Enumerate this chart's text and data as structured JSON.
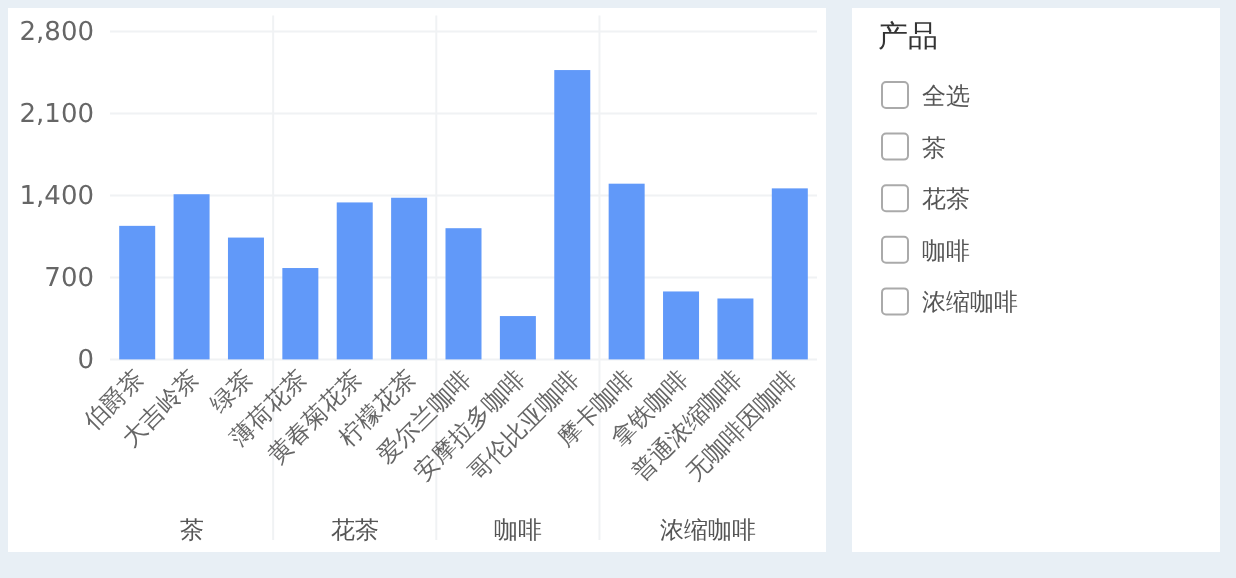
{
  "chart_data": [
    {
      "type": "bar",
      "categories": [
        "伯爵茶",
        "大吉岭茶",
        "绿茶",
        "薄荷花茶",
        "黄春菊花茶",
        "柠檬花茶",
        "爱尔兰咖啡",
        "安摩拉多咖啡",
        "哥伦比亚咖啡",
        "摩卡咖啡",
        "拿铁咖啡",
        "普通浓缩咖啡",
        "无咖啡因咖啡"
      ],
      "values": [
        1140,
        1410,
        1040,
        780,
        1340,
        1380,
        1120,
        370,
        2470,
        1500,
        580,
        520,
        1460
      ],
      "color": "#6199f9",
      "ylim": [
        0,
        2800
      ],
      "yticks": [
        0,
        {
          "value": 700,
          "label": "700"
        },
        {
          "value": 1400,
          "label": "1,400"
        },
        {
          "value": 2100,
          "label": "2,100"
        },
        {
          "value": 2800,
          "label": "2,800"
        }
      ],
      "grid": true,
      "annotations": [
        "茶",
        "花茶",
        "咖啡",
        "浓缩咖啡"
      ]
    },
    {
      "type": "other",
      "title": "产品",
      "annotations": [
        "全选",
        "茶",
        "花茶",
        "咖啡",
        "浓缩咖啡"
      ]
    }
  ]
}
